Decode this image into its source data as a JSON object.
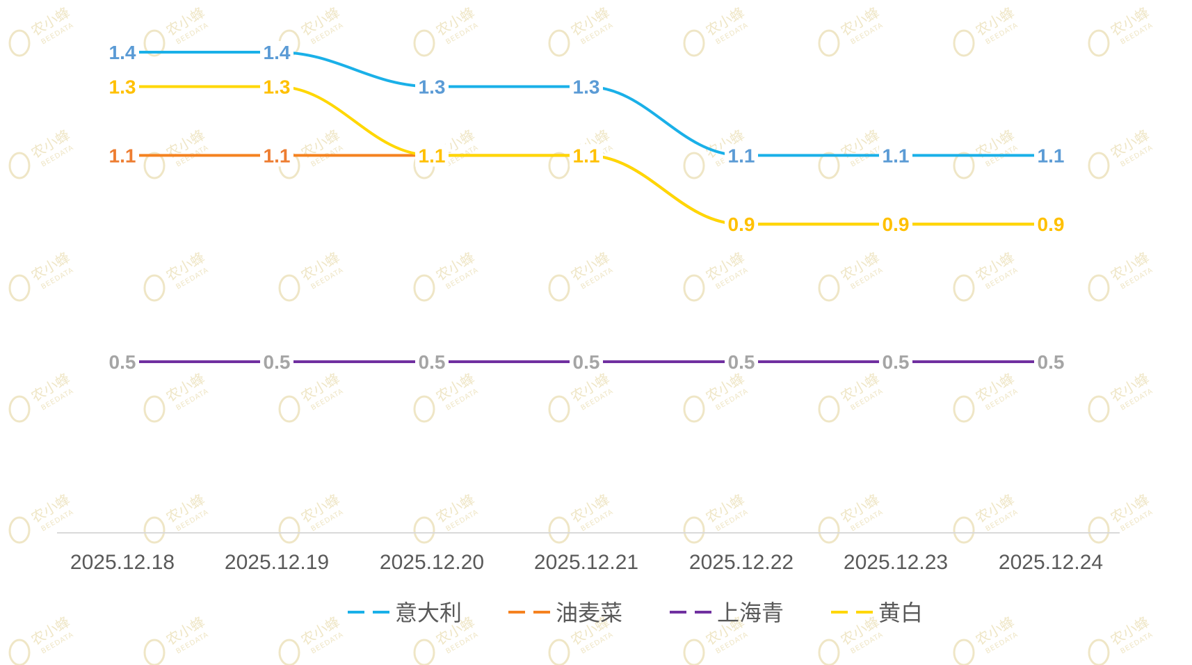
{
  "chart_data": {
    "type": "line",
    "categories": [
      "2025.12.18",
      "2025.12.19",
      "2025.12.20",
      "2025.12.21",
      "2025.12.22",
      "2025.12.23",
      "2025.12.24"
    ],
    "series": [
      {
        "name": "意大利",
        "values": [
          1.4,
          1.4,
          1.3,
          1.3,
          1.1,
          1.1,
          1.1
        ],
        "color": "#1ab0e8",
        "label_color": "#5b9bd5"
      },
      {
        "name": "油麦菜",
        "values": [
          1.1,
          1.1,
          1.1,
          1.1,
          0.9,
          0.9,
          0.9
        ],
        "color": "#f58220",
        "label_color": "#ed7d31"
      },
      {
        "name": "上海青",
        "values": [
          0.5,
          0.5,
          0.5,
          0.5,
          0.5,
          0.5,
          0.5
        ],
        "color": "#7030a0",
        "label_color": "#a5a5a5"
      },
      {
        "name": "黄白",
        "values": [
          1.3,
          1.3,
          1.1,
          1.1,
          0.9,
          0.9,
          0.9
        ],
        "color": "#ffd700",
        "label_color": "#ffc000"
      }
    ],
    "ylim": [
      0,
      1.5
    ],
    "grid": false,
    "legend_position": "bottom",
    "title": "",
    "xlabel": "",
    "ylabel": ""
  },
  "watermark": {
    "text": "农小蜂",
    "sub": "BEEDATA"
  }
}
